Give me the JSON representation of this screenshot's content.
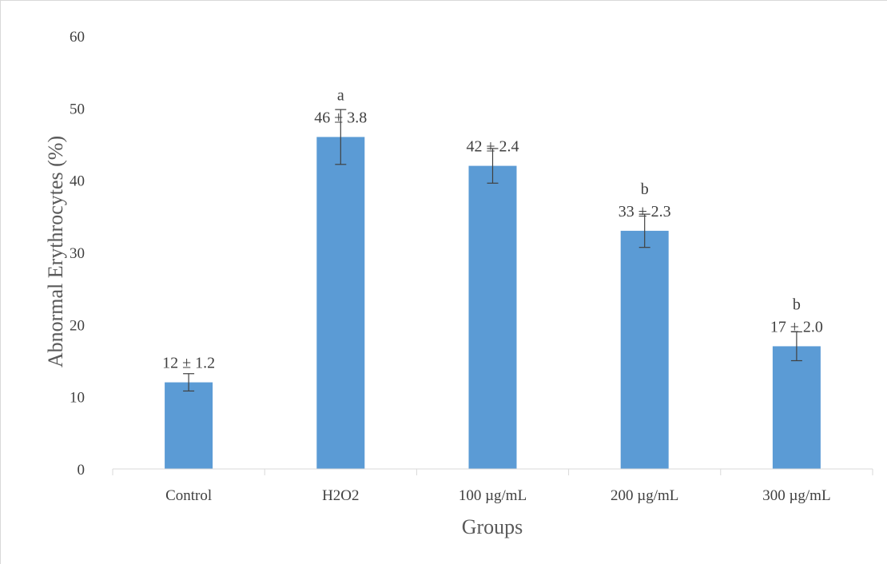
{
  "chart_data": {
    "type": "bar",
    "title": "",
    "xlabel": "Groups",
    "ylabel": "Abnormal Erythrocytes (%)",
    "ylim": [
      0,
      60
    ],
    "yticks": [
      "0",
      "10",
      "20",
      "30",
      "40",
      "50",
      "60"
    ],
    "categories": [
      "Control",
      "H2O2",
      "100 µg/mL",
      "200 µg/mL",
      "300 µg/mL"
    ],
    "values": [
      12,
      46,
      42,
      33,
      17
    ],
    "errors": [
      1.2,
      3.8,
      2.4,
      2.3,
      2.0
    ],
    "data_labels": [
      "12 ± 1.2",
      "46 ± 3.8",
      "42 ± 2.4",
      "33 ± 2.3",
      "17 ± 2.0"
    ],
    "significance": [
      "",
      "a",
      "",
      "b",
      "b"
    ],
    "grid": false,
    "legend": "none",
    "colors": {
      "bar": "#5b9bd5",
      "axis": "#d9d9d9",
      "errorbar": "#404040"
    }
  }
}
